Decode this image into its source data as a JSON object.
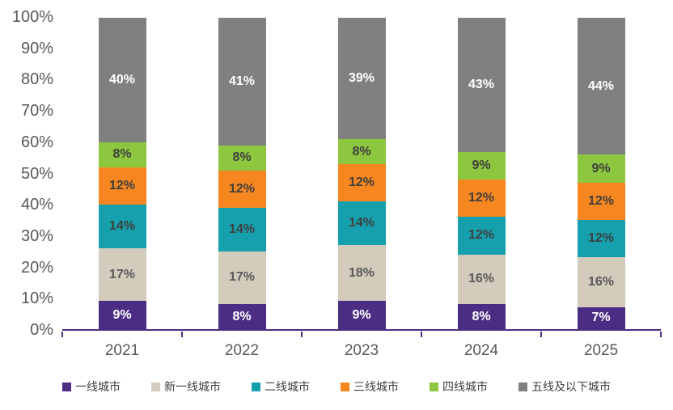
{
  "chart_data": {
    "type": "bar",
    "stacked": true,
    "percent_stacked": true,
    "title": "",
    "xlabel": "",
    "ylabel": "",
    "ylim": [
      0,
      100
    ],
    "grid": false,
    "legend_position": "bottom",
    "y_ticks": [
      "0%",
      "10%",
      "20%",
      "30%",
      "40%",
      "50%",
      "60%",
      "70%",
      "80%",
      "90%",
      "100%"
    ],
    "categories": [
      "2021",
      "2022",
      "2023",
      "2024",
      "2025"
    ],
    "series": [
      {
        "name": "一线城市",
        "color": "#4B2E83",
        "label_color": "#FFFFFF",
        "values": [
          9,
          8,
          9,
          8,
          7
        ]
      },
      {
        "name": "新一线城市",
        "color": "#D3CBBC",
        "label_color": "#595959",
        "values": [
          17,
          17,
          18,
          16,
          16
        ]
      },
      {
        "name": "二线城市",
        "color": "#16A0AE",
        "label_color": "#3F3F3F",
        "values": [
          14,
          14,
          14,
          12,
          12
        ]
      },
      {
        "name": "三线城市",
        "color": "#F6861F",
        "label_color": "#3F3F3F",
        "values": [
          12,
          12,
          12,
          12,
          12
        ]
      },
      {
        "name": "四线城市",
        "color": "#8DC63F",
        "label_color": "#3F3F3F",
        "values": [
          8,
          8,
          8,
          9,
          9
        ]
      },
      {
        "name": "五线及以下城市",
        "color": "#808080",
        "label_color": "#FFFFFF",
        "values": [
          40,
          41,
          39,
          43,
          44
        ]
      }
    ]
  },
  "colors": {
    "background": "#FFFFFF",
    "axis_line": "#4B2E83",
    "tick_label": "#595959",
    "legend_label": "#404040"
  }
}
